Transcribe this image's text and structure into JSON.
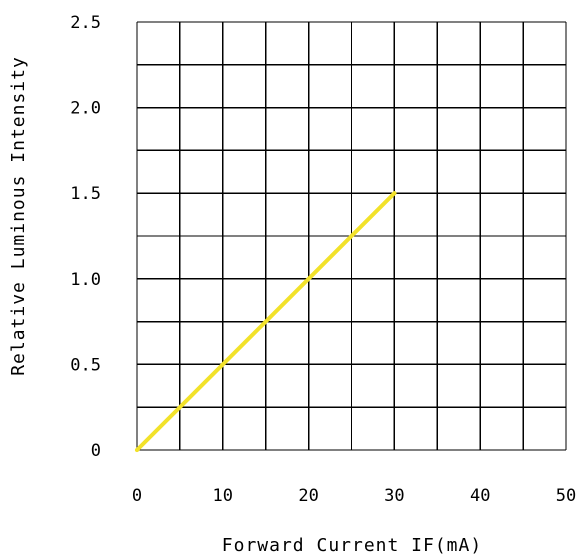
{
  "chart_data": {
    "type": "line",
    "title": "",
    "xlabel": "Forward Current IF(mA)",
    "ylabel": "Relative Luminous Intensity",
    "xlim": [
      0,
      50
    ],
    "ylim": [
      0,
      2.5
    ],
    "grid": true,
    "x_ticks": [
      {
        "value": 0,
        "label": "0"
      },
      {
        "value": 10,
        "label": "10"
      },
      {
        "value": 20,
        "label": "20"
      },
      {
        "value": 30,
        "label": "30"
      },
      {
        "value": 40,
        "label": "40"
      },
      {
        "value": 50,
        "label": "50"
      }
    ],
    "y_ticks": [
      {
        "value": 0,
        "label": "0"
      },
      {
        "value": 0.5,
        "label": "0.5"
      },
      {
        "value": 1.0,
        "label": "1.0"
      },
      {
        "value": 1.5,
        "label": "1.5"
      },
      {
        "value": 2.0,
        "label": "2.0"
      },
      {
        "value": 2.5,
        "label": "2.5"
      }
    ],
    "series": [
      {
        "color": "#f2e22a",
        "x": [
          0,
          30
        ],
        "y": [
          0,
          1.5
        ]
      }
    ]
  }
}
